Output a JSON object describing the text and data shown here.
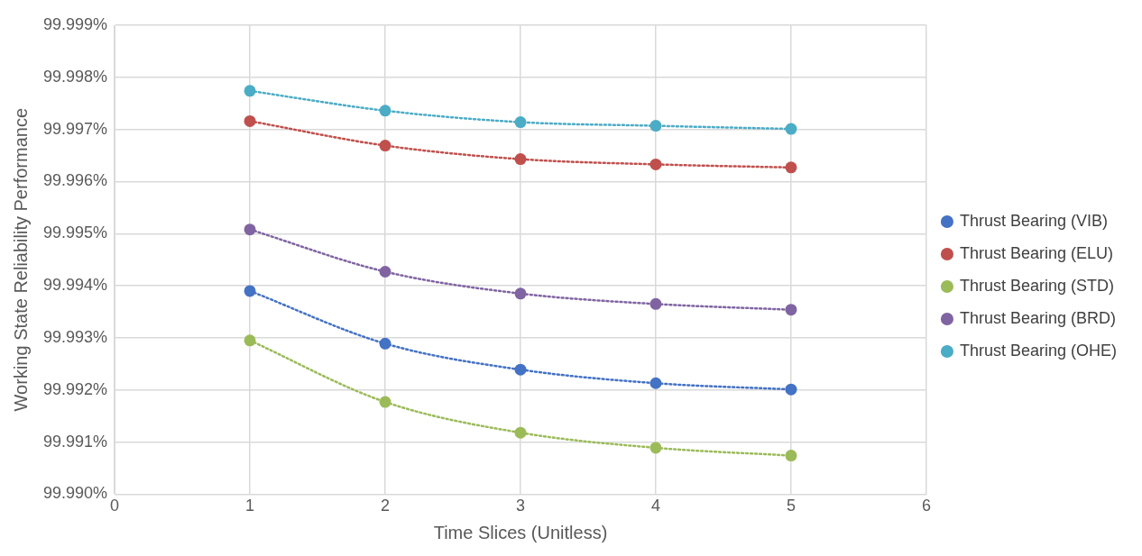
{
  "chart_data": {
    "type": "line",
    "xlabel": "Time Slices (Unitless)",
    "ylabel": "Working State Reliability Performance",
    "x": [
      1,
      2,
      3,
      4,
      5
    ],
    "xlim": [
      0,
      6
    ],
    "xticks": [
      0,
      1,
      2,
      3,
      4,
      5,
      6
    ],
    "ylim": [
      99.99,
      99.999
    ],
    "yticks": [
      {
        "value": 99.99,
        "label": "99.990%"
      },
      {
        "value": 99.991,
        "label": "99.991%"
      },
      {
        "value": 99.992,
        "label": "99.992%"
      },
      {
        "value": 99.993,
        "label": "99.993%"
      },
      {
        "value": 99.994,
        "label": "99.994%"
      },
      {
        "value": 99.995,
        "label": "99.995%"
      },
      {
        "value": 99.996,
        "label": "99.996%"
      },
      {
        "value": 99.997,
        "label": "99.997%"
      },
      {
        "value": 99.998,
        "label": "99.998%"
      },
      {
        "value": 99.999,
        "label": "99.999%"
      }
    ],
    "series": [
      {
        "name": "Thrust Bearing (VIB)",
        "color": "#4472c4",
        "values": [
          99.9939,
          99.99289,
          99.99239,
          99.99213,
          99.99201
        ]
      },
      {
        "name": "Thrust Bearing (ELU)",
        "color": "#c0504d",
        "values": [
          99.99716,
          99.99669,
          99.99643,
          99.99633,
          99.99627
        ]
      },
      {
        "name": "Thrust Bearing (STD)",
        "color": "#9bbb59",
        "values": [
          99.99295,
          99.99177,
          99.99118,
          99.99089,
          99.99074
        ]
      },
      {
        "name": "Thrust Bearing (BRD)",
        "color": "#8064a2",
        "values": [
          99.99508,
          99.99427,
          99.99385,
          99.99365,
          99.99354
        ]
      },
      {
        "name": "Thrust Bearing (OHE)",
        "color": "#4bacc6",
        "values": [
          99.99774,
          99.99736,
          99.99714,
          99.99707,
          99.99701
        ]
      }
    ],
    "grid": true,
    "legend": "right",
    "marker": "circle",
    "line_style": "dotted"
  }
}
